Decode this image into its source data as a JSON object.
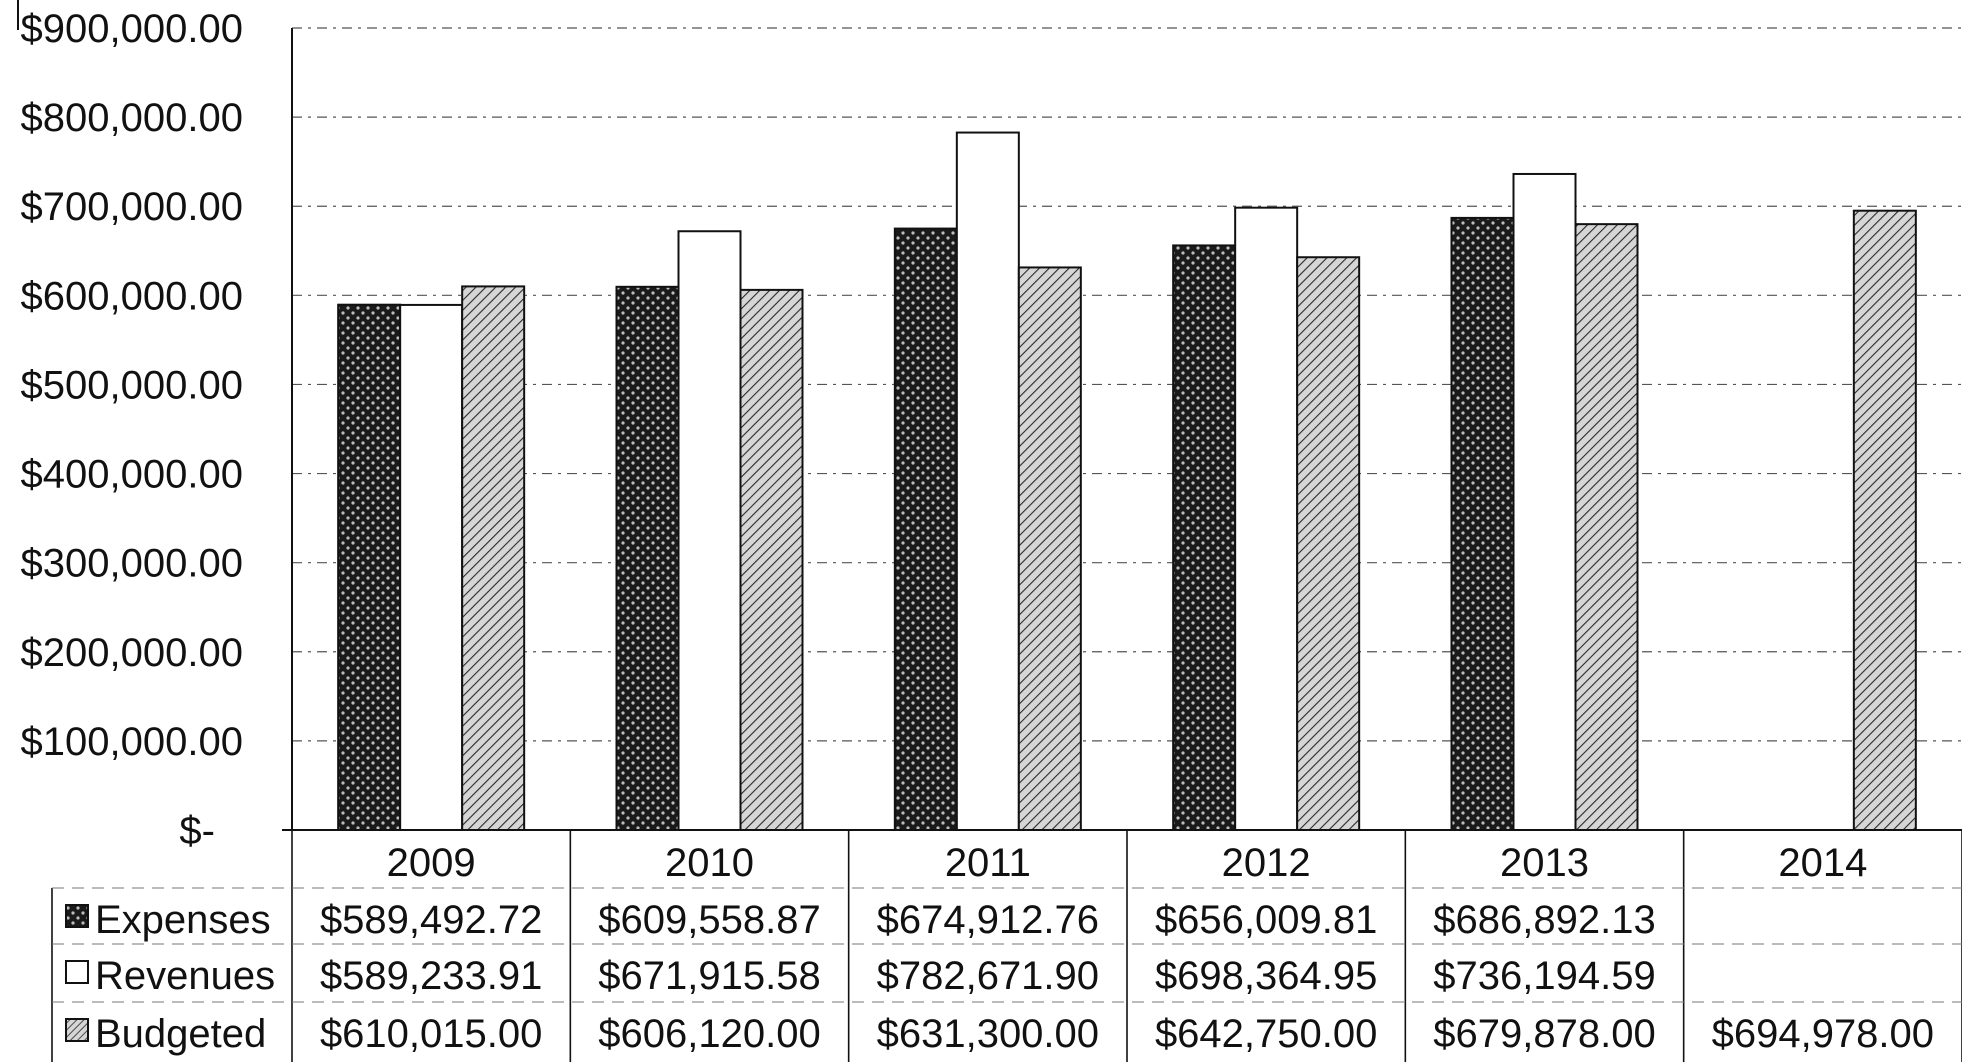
{
  "chart_data": {
    "type": "bar",
    "title": "",
    "xlabel": "",
    "ylabel": "",
    "ylim": [
      0,
      900000
    ],
    "y_ticks": [
      0,
      100000,
      200000,
      300000,
      400000,
      500000,
      600000,
      700000,
      800000,
      900000
    ],
    "y_tick_labels": [
      "$-",
      "$100,000.00",
      "$200,000.00",
      "$300,000.00",
      "$400,000.00",
      "$500,000.00",
      "$600,000.00",
      "$700,000.00",
      "$800,000.00",
      "$900,000.00"
    ],
    "grid": true,
    "legend": "data-table",
    "categories": [
      "2009",
      "2010",
      "2011",
      "2012",
      "2013",
      "2014"
    ],
    "series": [
      {
        "name": "Expenses",
        "pattern": "dark-dotted",
        "values": [
          589492.72,
          609558.87,
          674912.76,
          656009.81,
          686892.13,
          null
        ],
        "labels": [
          "$589,492.72",
          "$609,558.87",
          "$674,912.76",
          "$656,009.81",
          "$686,892.13",
          ""
        ]
      },
      {
        "name": "Revenues",
        "pattern": "white",
        "values": [
          589233.91,
          671915.58,
          782671.9,
          698364.95,
          736194.59,
          null
        ],
        "labels": [
          "$589,233.91",
          "$671,915.58",
          "$782,671.90",
          "$698,364.95",
          "$736,194.59",
          ""
        ]
      },
      {
        "name": "Budgeted",
        "pattern": "diagonal-hatch",
        "values": [
          610015.0,
          606120.0,
          631300.0,
          642750.0,
          679878.0,
          694978.0
        ],
        "labels": [
          "$610,015.00",
          "$606,120.00",
          "$631,300.00",
          "$642,750.00",
          "$679,878.00",
          "$694,978.00"
        ]
      }
    ]
  }
}
